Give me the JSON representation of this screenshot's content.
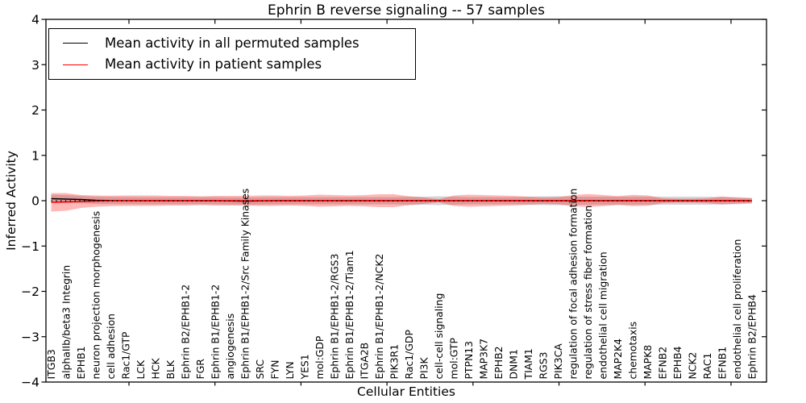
{
  "chart_data": {
    "type": "line",
    "title": "Ephrin B reverse signaling -- 57 samples",
    "xlabel": "Cellular Entities",
    "ylabel": "Inferred Activity",
    "ylim": [
      -4,
      4
    ],
    "ytick_values": [
      4,
      3,
      2,
      1,
      0,
      -1,
      -2,
      -3,
      -4
    ],
    "ytick_labels": [
      "4",
      "3",
      "2",
      "1",
      "0",
      "−1",
      "−2",
      "−3",
      "−4"
    ],
    "grid": false,
    "legend_position": "upper left",
    "zero_reference_line": {
      "value": 0,
      "style": "dotted",
      "color": "#000000"
    },
    "categories": [
      "ITGB3",
      "alphaIIb/beta3 Integrin",
      "EPHB1",
      "neuron projection morphogenesis",
      "cell adhesion",
      "Rac1/GTP",
      "LCK",
      "HCK",
      "BLK",
      "Ephrin B2/EPHB1-2",
      "FGR",
      "Ephrin B1/EPHB1-2",
      "angiogenesis",
      "Ephrin B1/EPHB1-2/Src Family Kinases",
      "SRC",
      "FYN",
      "LYN",
      "YES1",
      "mol:GDP",
      "Ephrin B1/EPHB1-2/RGS3",
      "Ephrin B1/EPHB1-2/Tiam1",
      "ITGA2B",
      "Ephrin B1/EPHB1-2/NCK2",
      "PIK3R1",
      "Rac1/GDP",
      "PI3K",
      "cell-cell signaling",
      "mol:GTP",
      "PTPN13",
      "MAP3K7",
      "EPHB2",
      "DNM1",
      "TIAM1",
      "RGS3",
      "PIK3CA",
      "regulation of focal adhesion formation",
      "regulation of stress fiber formation",
      "endothelial cell migration",
      "MAP2K4",
      "chemotaxis",
      "MAPK8",
      "EFNB2",
      "EPHB4",
      "NCK2",
      "RAC1",
      "EFNB1",
      "endothelial cell proliferation",
      "Ephrin B2/EPHB4"
    ],
    "series": [
      {
        "name": "Mean activity in all permuted samples",
        "color": "#000000",
        "band_color": "#aaaaaa",
        "band_alpha": 0.5,
        "values": [
          0.044,
          0.036,
          0.027,
          0.009,
          0.004,
          0.002,
          0,
          0,
          0,
          0,
          0,
          0,
          -0.005,
          -0.009,
          -0.005,
          0,
          0,
          0,
          0,
          0,
          0,
          0,
          0,
          0,
          0,
          0,
          0,
          0,
          0,
          0,
          0,
          0,
          0,
          0,
          0,
          0,
          0,
          0,
          0,
          0,
          0,
          0,
          0,
          0,
          0,
          0,
          0,
          0
        ],
        "band_std": [
          0.089,
          0.089,
          0.08,
          0.08,
          0.08,
          0.08,
          0.08,
          0.08,
          0.08,
          0.08,
          0.08,
          0.08,
          0.08,
          0.08,
          0.08,
          0.08,
          0.08,
          0.08,
          0.08,
          0.08,
          0.08,
          0.08,
          0.08,
          0.08,
          0.089,
          0.089,
          0.098,
          0.089,
          0.08,
          0.08,
          0.08,
          0.08,
          0.089,
          0.098,
          0.098,
          0.089,
          0.089,
          0.089,
          0.089,
          0.089,
          0.089,
          0.089,
          0.089,
          0.089,
          0.089,
          0.08,
          0.08,
          0.062
        ]
      },
      {
        "name": "Mean activity in patient samples",
        "color": "#ff0000",
        "band_color": "#ff0000",
        "band_alpha": 0.28,
        "values": [
          -0.036,
          -0.027,
          -0.018,
          -0.009,
          -0.004,
          0,
          0,
          0,
          0,
          0,
          0,
          0,
          0,
          0,
          0,
          0,
          0,
          0,
          0,
          0,
          0,
          0,
          0,
          0,
          0,
          0,
          0,
          0,
          0,
          0,
          0,
          0,
          0,
          0,
          0,
          0,
          0.004,
          0.002,
          0.004,
          0.005,
          0.002,
          0,
          0,
          0,
          0,
          0.004,
          0,
          0
        ],
        "band_std": [
          0.204,
          0.196,
          0.142,
          0.124,
          0.116,
          0.116,
          0.116,
          0.116,
          0.107,
          0.107,
          0.098,
          0.107,
          0.107,
          0.107,
          0.116,
          0.116,
          0.107,
          0.116,
          0.133,
          0.124,
          0.116,
          0.124,
          0.142,
          0.142,
          0.098,
          0.071,
          0.036,
          0.116,
          0.133,
          0.124,
          0.116,
          0.107,
          0.089,
          0.071,
          0.08,
          0.124,
          0.142,
          0.124,
          0.098,
          0.124,
          0.116,
          0.053,
          0.044,
          0.044,
          0.053,
          0.089,
          0.062,
          0.053
        ]
      }
    ]
  }
}
